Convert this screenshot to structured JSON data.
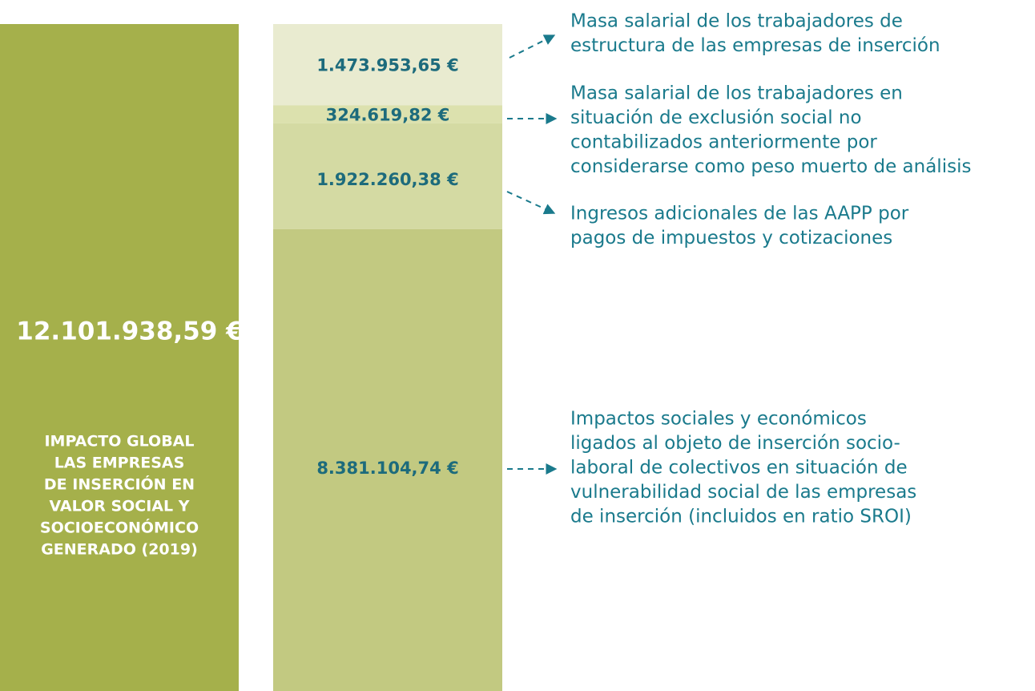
{
  "chart_data": {
    "type": "stacked_bar",
    "total": {
      "value": 12101938.59,
      "label": "12.101.938,59 €"
    },
    "total_color": "#a5b04b",
    "title": [
      "IMPACTO GLOBAL",
      "LAS EMPRESAS",
      "DE INSERCIÓN EN",
      "VALOR SOCIAL Y",
      "SOCIOECONÓMICO",
      "GENERADO (2019)"
    ],
    "series": [
      {
        "name": "Masa salarial de los trabajadores de estructura de las empresas de inserción",
        "annotation": [
          "Masa salarial de los trabajadores de",
          "estructura de las empresas de inserción"
        ],
        "color": "#e9ebd0",
        "values": [
          1473953.65
        ],
        "value_labels": [
          "1.473.953,65 €"
        ]
      },
      {
        "name": "Masa salarial de los trabajadores en situación de exclusión social no contabilizados anteriormente por considerarse como peso muerto de análisis",
        "annotation": [
          "Masa salarial de los trabajadores en",
          "situación de exclusión social no",
          "contabilizados anteriormente por",
          "considerarse como peso muerto de análisis"
        ],
        "color": "#dce1ae",
        "values": [
          324619.82
        ],
        "value_labels": [
          "324.619,82 €"
        ]
      },
      {
        "name": "Ingresos adicionales de las AAPP por pagos de impuestos y cotizaciones",
        "annotation": [
          "Ingresos adicionales de las AAPP por",
          "pagos de impuestos y cotizaciones"
        ],
        "color": "#d4daa3",
        "values": [
          1922260.38
        ],
        "value_labels": [
          "1.922.260,38 €"
        ]
      },
      {
        "name": "Impactos sociales y económicos ligados al objeto de inserción socio-laboral de colectivos en situación de vulnerabilidad social de las empresas de inserción (incluidos en ratio SROI)",
        "annotation": [
          "Impactos sociales y económicos",
          "ligados al objeto de inserción socio-",
          "laboral de colectivos en situación de",
          "vulnerabilidad social de las empresas",
          "de inserción (incluidos en ratio SROI)"
        ],
        "color": "#c2c981",
        "values": [
          8381104.74
        ],
        "value_labels": [
          "8.381.104,74 €"
        ]
      }
    ]
  }
}
